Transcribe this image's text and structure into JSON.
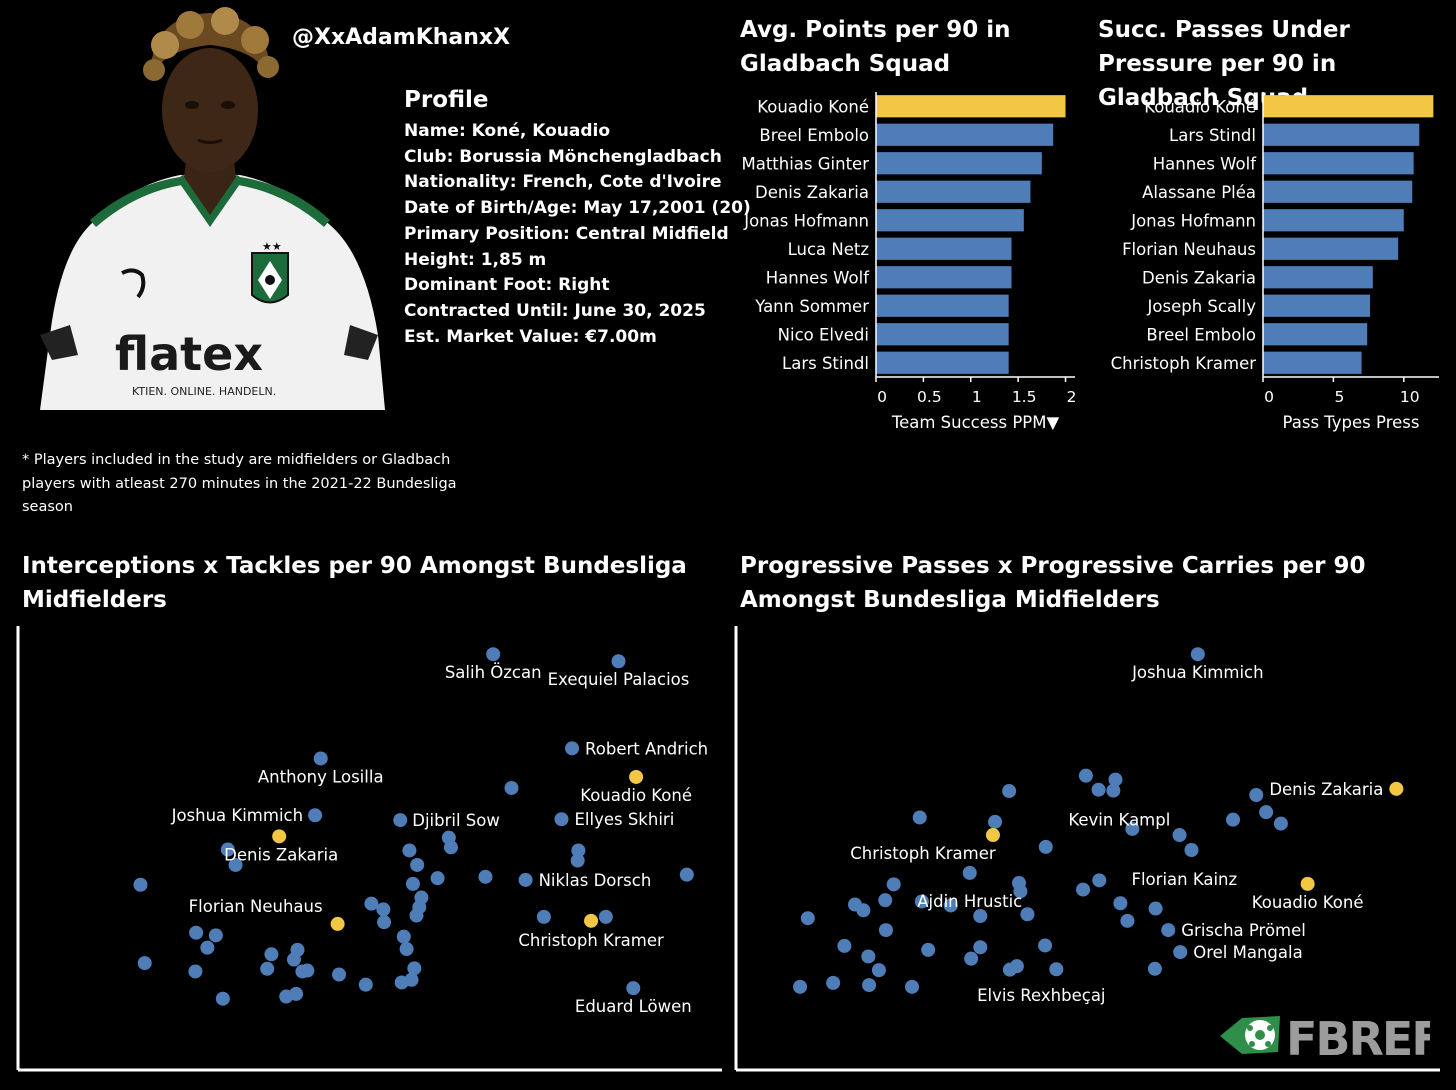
{
  "header": {
    "handle": "@XxAdamKhanxX",
    "profile_title": "Profile",
    "profile_lines": [
      "Name: Koné, Kouadio",
      "Club: Borussia Mönchengladbach",
      "Nationality: French, Cote d'Ivoire",
      "Date of Birth/Age: May 17,2001 (20)",
      "Primary Position: Central Midfield",
      "Height: 1,85 m",
      "Dominant Foot: Right",
      "Contracted Until: June 30, 2025",
      "Est. Market Value: €7.00m"
    ],
    "footnote": "* Players included in the study are midfielders or Gladbach players with atleast 270 minutes in the 2021-22 Bundesliga season"
  },
  "jersey": {
    "sponsor": "flatex",
    "tagline": "KTIEN. ONLINE. HANDELN."
  },
  "logo": {
    "text": "FBREF",
    "icon": "fbref-ball-icon"
  },
  "colors": {
    "highlight": "#f2c744",
    "bar": "#4f7db8",
    "point": "#4f7db8",
    "background": "#000000"
  },
  "chart_data": [
    {
      "type": "bar",
      "title": "Avg. Points per 90 in Gladbach Squad",
      "xlabel": "Team Success PPM▼",
      "xlim": [
        0,
        2.1
      ],
      "ticks": [
        0,
        0.5,
        1,
        1.5,
        2
      ],
      "tick_labels": [
        "0",
        "0.5",
        "1",
        "1.5",
        "2"
      ],
      "categories": [
        "Kouadio Koné",
        "Breel Embolo",
        "Matthias Ginter",
        "Denis Zakaria",
        "Jonas Hofmann",
        "Luca Netz",
        "Hannes Wolf",
        "Yann Sommer",
        "Nico Elvedi",
        "Lars Stindl"
      ],
      "values": [
        2.0,
        1.87,
        1.75,
        1.63,
        1.56,
        1.43,
        1.43,
        1.4,
        1.4,
        1.4
      ],
      "highlight": "Kouadio Koné"
    },
    {
      "type": "bar",
      "title": "Succ. Passes Under Pressure per 90 in Gladbach Squad",
      "xlabel": "Pass Types Press",
      "xlim": [
        0,
        12.5
      ],
      "ticks": [
        0,
        5,
        10
      ],
      "tick_labels": [
        "0",
        "5",
        "10"
      ],
      "categories": [
        "Kouadio Koné",
        "Lars Stindl",
        "Hannes Wolf",
        "Alassane Pléa",
        "Jonas Hofmann",
        "Florian Neuhaus",
        "Denis Zakaria",
        "Joseph Scally",
        "Breel Embolo",
        "Christoph Kramer"
      ],
      "values": [
        12.1,
        11.1,
        10.7,
        10.6,
        10.0,
        9.6,
        7.8,
        7.6,
        7.4,
        7.0
      ],
      "highlight": "Kouadio Koné"
    },
    {
      "type": "scatter",
      "title": "Interceptions x Tackles per 90 Amongst Bundesliga Midfielders",
      "xlabel": "",
      "ylabel": "",
      "xlim": [
        0,
        100
      ],
      "ylim": [
        0,
        100
      ],
      "points": [
        {
          "x": 67.5,
          "y": 94.5,
          "label": "Salih Özcan"
        },
        {
          "x": 85.3,
          "y": 92.9,
          "label": "Exequiel Palacios"
        },
        {
          "x": 43.0,
          "y": 70.8,
          "label": "Anthony Losilla"
        },
        {
          "x": 78.7,
          "y": 73.1,
          "label": "Robert Andrich"
        },
        {
          "x": 87.8,
          "y": 66.6,
          "label": "Kouadio Koné",
          "highlight": true
        },
        {
          "x": 70.1,
          "y": 64.1
        },
        {
          "x": 42.2,
          "y": 57.9,
          "label": "Joshua Kimmich"
        },
        {
          "x": 37.1,
          "y": 53.1,
          "label": "Denis Zakaria",
          "highlight": true
        },
        {
          "x": 54.3,
          "y": 56.8,
          "label": "Djibril Sow"
        },
        {
          "x": 77.2,
          "y": 57.0,
          "label": "Ellyes Skhiri"
        },
        {
          "x": 61.2,
          "y": 52.8
        },
        {
          "x": 61.5,
          "y": 50.6
        },
        {
          "x": 55.6,
          "y": 49.9
        },
        {
          "x": 29.8,
          "y": 50.1
        },
        {
          "x": 79.6,
          "y": 49.9
        },
        {
          "x": 79.5,
          "y": 47.6
        },
        {
          "x": 30.9,
          "y": 46.6
        },
        {
          "x": 56.7,
          "y": 46.6
        },
        {
          "x": 17.4,
          "y": 42.1
        },
        {
          "x": 56.1,
          "y": 42.3
        },
        {
          "x": 59.6,
          "y": 43.6
        },
        {
          "x": 66.4,
          "y": 43.9
        },
        {
          "x": 72.1,
          "y": 43.2,
          "label": "Niklas Dorsch"
        },
        {
          "x": 95.0,
          "y": 44.4
        },
        {
          "x": 57.3,
          "y": 39.2
        },
        {
          "x": 50.2,
          "y": 37.8
        },
        {
          "x": 51.9,
          "y": 36.5
        },
        {
          "x": 57.0,
          "y": 37.0
        },
        {
          "x": 56.6,
          "y": 35.1
        },
        {
          "x": 45.4,
          "y": 33.2,
          "label": "Florian Neuhaus",
          "highlight": true
        },
        {
          "x": 52.0,
          "y": 33.6
        },
        {
          "x": 74.7,
          "y": 34.8
        },
        {
          "x": 81.4,
          "y": 33.9,
          "label": "Christoph Kramer",
          "highlight": true
        },
        {
          "x": 83.5,
          "y": 34.8
        },
        {
          "x": 25.3,
          "y": 31.2
        },
        {
          "x": 28.1,
          "y": 30.6
        },
        {
          "x": 26.9,
          "y": 27.8
        },
        {
          "x": 54.8,
          "y": 30.3
        },
        {
          "x": 55.2,
          "y": 27.5
        },
        {
          "x": 39.7,
          "y": 27.3
        },
        {
          "x": 36.0,
          "y": 26.3
        },
        {
          "x": 39.2,
          "y": 25.1
        },
        {
          "x": 18.0,
          "y": 24.3
        },
        {
          "x": 35.4,
          "y": 23.0
        },
        {
          "x": 40.4,
          "y": 22.4
        },
        {
          "x": 41.1,
          "y": 22.6
        },
        {
          "x": 25.2,
          "y": 22.4
        },
        {
          "x": 45.6,
          "y": 21.7
        },
        {
          "x": 56.3,
          "y": 23.1
        },
        {
          "x": 55.9,
          "y": 20.5
        },
        {
          "x": 54.5,
          "y": 19.9
        },
        {
          "x": 49.4,
          "y": 19.4
        },
        {
          "x": 39.5,
          "y": 17.3
        },
        {
          "x": 38.1,
          "y": 16.7
        },
        {
          "x": 29.1,
          "y": 16.2
        },
        {
          "x": 87.4,
          "y": 18.6,
          "label": "Eduard Löwen"
        }
      ]
    },
    {
      "type": "scatter",
      "title": "Progressive Passes x Progressive Carries per 90 Amongst Bundesliga Midfielders",
      "xlabel": "",
      "ylabel": "",
      "xlim": [
        0,
        100
      ],
      "ylim": [
        0,
        100
      ],
      "points": [
        {
          "x": 65.6,
          "y": 94.5,
          "label": "Joshua Kimmich"
        },
        {
          "x": 49.7,
          "y": 66.9
        },
        {
          "x": 53.9,
          "y": 66.0
        },
        {
          "x": 51.5,
          "y": 63.7
        },
        {
          "x": 53.6,
          "y": 63.5,
          "label": "Kevin Kampl"
        },
        {
          "x": 38.8,
          "y": 63.4
        },
        {
          "x": 73.9,
          "y": 62.5
        },
        {
          "x": 93.8,
          "y": 63.9,
          "label": "Denis Zakaria",
          "highlight": true
        },
        {
          "x": 75.3,
          "y": 58.6
        },
        {
          "x": 26.1,
          "y": 57.4
        },
        {
          "x": 36.8,
          "y": 56.4
        },
        {
          "x": 70.6,
          "y": 56.9
        },
        {
          "x": 77.4,
          "y": 56.0
        },
        {
          "x": 56.3,
          "y": 54.8
        },
        {
          "x": 36.5,
          "y": 53.4,
          "label": "Christoph Kramer",
          "highlight": true
        },
        {
          "x": 63.0,
          "y": 53.4
        },
        {
          "x": 44.0,
          "y": 50.7
        },
        {
          "x": 64.7,
          "y": 50.0,
          "label": "Florian Kainz"
        },
        {
          "x": 33.2,
          "y": 44.8,
          "label": "Ajdin Hrustic"
        },
        {
          "x": 22.4,
          "y": 42.2
        },
        {
          "x": 40.2,
          "y": 42.5
        },
        {
          "x": 40.4,
          "y": 40.6
        },
        {
          "x": 51.6,
          "y": 43.1
        },
        {
          "x": 49.3,
          "y": 41.0
        },
        {
          "x": 81.2,
          "y": 42.3,
          "label": "Kouadio Koné",
          "highlight": true
        },
        {
          "x": 21.2,
          "y": 38.6
        },
        {
          "x": 26.4,
          "y": 38.3
        },
        {
          "x": 30.5,
          "y": 37.4
        },
        {
          "x": 16.9,
          "y": 37.6
        },
        {
          "x": 18.1,
          "y": 36.3
        },
        {
          "x": 54.6,
          "y": 37.9
        },
        {
          "x": 59.6,
          "y": 36.7
        },
        {
          "x": 41.4,
          "y": 35.4
        },
        {
          "x": 34.7,
          "y": 35.0
        },
        {
          "x": 10.2,
          "y": 34.5
        },
        {
          "x": 55.6,
          "y": 33.9
        },
        {
          "x": 21.3,
          "y": 31.8
        },
        {
          "x": 61.4,
          "y": 31.8,
          "label": "Grischa Prömel"
        },
        {
          "x": 15.4,
          "y": 28.2
        },
        {
          "x": 27.3,
          "y": 27.3
        },
        {
          "x": 34.7,
          "y": 27.9
        },
        {
          "x": 43.9,
          "y": 28.3
        },
        {
          "x": 63.1,
          "y": 26.8,
          "label": "Orel Mangala"
        },
        {
          "x": 18.8,
          "y": 25.8
        },
        {
          "x": 33.4,
          "y": 25.3
        },
        {
          "x": 38.9,
          "y": 22.8
        },
        {
          "x": 39.9,
          "y": 23.6
        },
        {
          "x": 45.5,
          "y": 22.9,
          "label": "Elvis Rexhbeçaj"
        },
        {
          "x": 59.5,
          "y": 23.0
        },
        {
          "x": 20.3,
          "y": 22.7
        },
        {
          "x": 13.8,
          "y": 19.8
        },
        {
          "x": 18.9,
          "y": 19.3
        },
        {
          "x": 25.0,
          "y": 18.9
        },
        {
          "x": 9.1,
          "y": 18.9
        }
      ]
    }
  ]
}
